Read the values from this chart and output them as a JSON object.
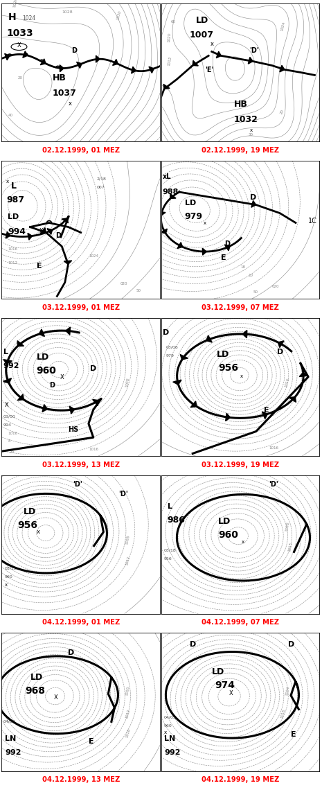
{
  "panels": [
    {
      "label": "02.12.1999, 01 MEZ",
      "row": 0,
      "col": 0
    },
    {
      "label": "02.12.1999, 19 MEZ",
      "row": 0,
      "col": 1
    },
    {
      "label": "03.12.1999, 01 MEZ",
      "row": 1,
      "col": 0
    },
    {
      "label": "03.12.1999, 07 MEZ",
      "row": 1,
      "col": 1
    },
    {
      "label": "03.12.1999, 13 MEZ",
      "row": 2,
      "col": 0
    },
    {
      "label": "03.12.1999, 19 MEZ",
      "row": 2,
      "col": 1
    },
    {
      "label": "04.12.1999, 01 MEZ",
      "row": 3,
      "col": 0
    },
    {
      "label": "04.12.1999, 07 MEZ",
      "row": 3,
      "col": 1
    },
    {
      "label": "04.12.1999, 13 MEZ",
      "row": 4,
      "col": 0
    },
    {
      "label": "04.12.1999, 19 MEZ",
      "row": 4,
      "col": 1
    }
  ],
  "label_color": "#ff0000",
  "label_fontsize": 7.2,
  "label_fontweight": "bold",
  "bg_color": "#ffffff",
  "figsize": [
    4.65,
    11.4
  ],
  "dpi": 100,
  "rows": 5,
  "cols": 2
}
